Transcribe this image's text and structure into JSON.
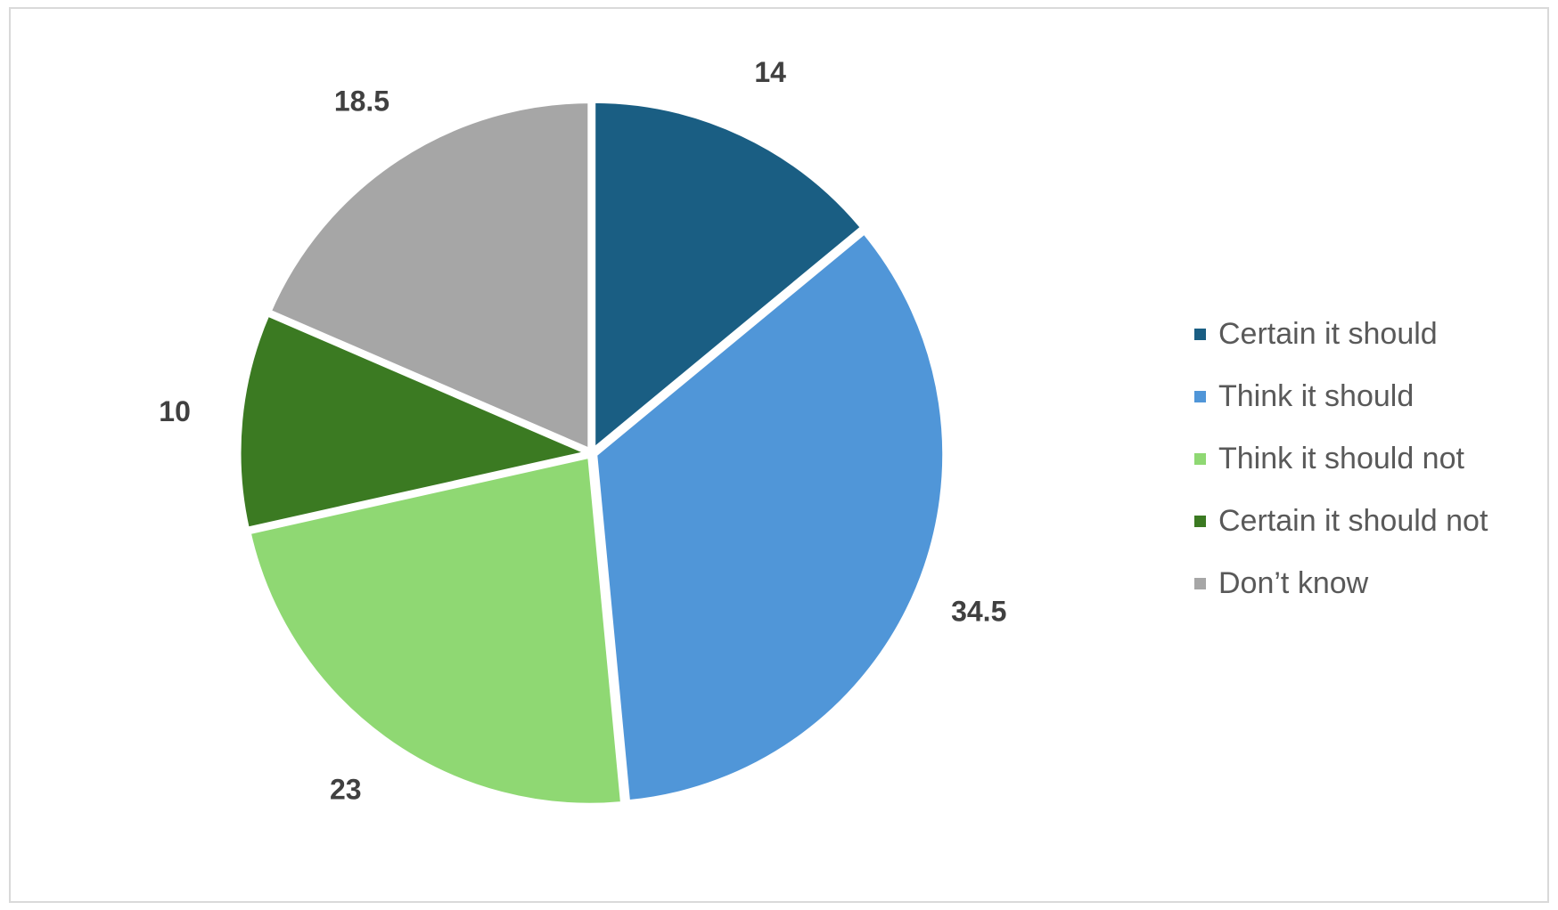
{
  "chart_data": {
    "type": "pie",
    "categories": [
      "Certain it should",
      "Think it should",
      "Think it should not",
      "Certain it should not",
      "Don’t know"
    ],
    "values": [
      14,
      34.5,
      23,
      10,
      18.5
    ],
    "value_labels": [
      "14",
      "34.5",
      "23",
      "10",
      "18.5"
    ],
    "colors": [
      "#1a5e83",
      "#5096d8",
      "#8fd873",
      "#3b7a22",
      "#a6a6a6"
    ],
    "start_angle_deg": 0,
    "direction": "clockwise",
    "legend": {
      "position": "right",
      "items": [
        {
          "label": "Certain it should",
          "color": "#1a5e83"
        },
        {
          "label": "Think it should",
          "color": "#5096d8"
        },
        {
          "label": "Think it should not",
          "color": "#8fd873"
        },
        {
          "label": "Certain it should not",
          "color": "#3b7a22"
        },
        {
          "label": "Don’t know",
          "color": "#a6a6a6"
        }
      ]
    }
  }
}
